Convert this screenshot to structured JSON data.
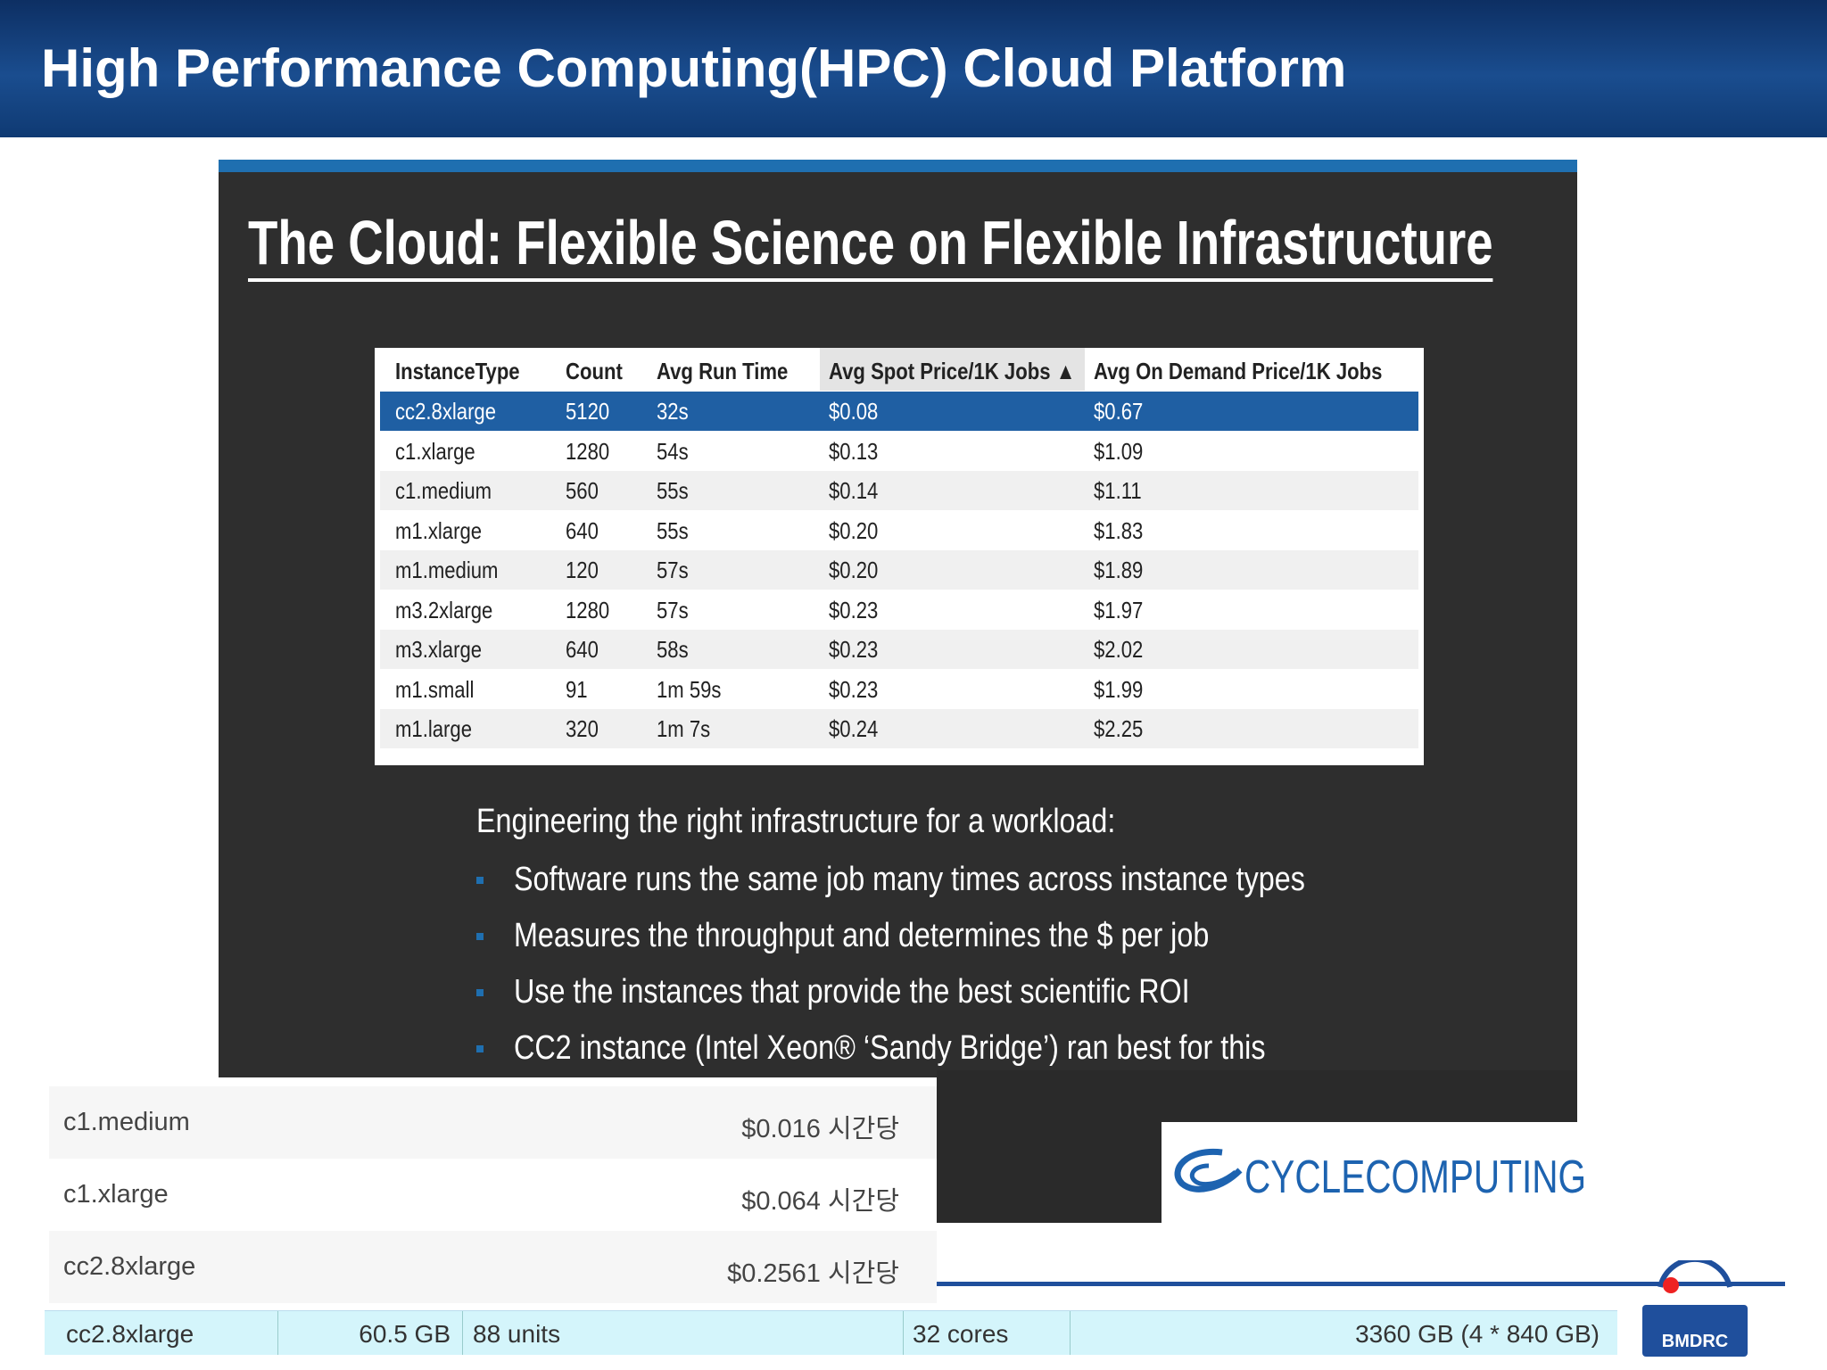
{
  "header": {
    "title": "High Performance Computing(HPC) Cloud Platform"
  },
  "slide": {
    "title": "The Cloud: Flexible Science on Flexible Infrastructure",
    "table": {
      "columns": [
        "InstanceType",
        "Count",
        "Avg Run Time",
        "Avg Spot Price/1K Jobs ▲",
        "Avg On Demand Price/1K Jobs"
      ],
      "rows": [
        [
          "cc2.8xlarge",
          "5120",
          "32s",
          "$0.08",
          "$0.67"
        ],
        [
          "c1.xlarge",
          "1280",
          "54s",
          "$0.13",
          "$1.09"
        ],
        [
          "c1.medium",
          "560",
          "55s",
          "$0.14",
          "$1.11"
        ],
        [
          "m1.xlarge",
          "640",
          "55s",
          "$0.20",
          "$1.83"
        ],
        [
          "m1.medium",
          "120",
          "57s",
          "$0.20",
          "$1.89"
        ],
        [
          "m3.2xlarge",
          "1280",
          "57s",
          "$0.23",
          "$1.97"
        ],
        [
          "m3.xlarge",
          "640",
          "58s",
          "$0.23",
          "$2.02"
        ],
        [
          "m1.small",
          "91",
          "1m 59s",
          "$0.23",
          "$1.99"
        ],
        [
          "m1.large",
          "320",
          "1m 7s",
          "$0.24",
          "$2.25"
        ]
      ]
    },
    "intro": "Engineering the right infrastructure for a workload:",
    "bullets": [
      "Software runs the same job many times across instance types",
      "Measures the throughput and determines the $ per job",
      "Use the instances that provide the best scientific ROI",
      "CC2 instance (Intel Xeon® ‘Sandy Bridge’) ran best for this"
    ],
    "logo": "CYCLECOMPUTING"
  },
  "prices": [
    [
      "c1.medium",
      "$0.016 시간당"
    ],
    [
      "c1.xlarge",
      "$0.064 시간당"
    ],
    [
      "cc2.8xlarge",
      "$0.2561 시간당"
    ]
  ],
  "spec": [
    "cc2.8xlarge",
    "60.5 GB",
    "88 units",
    "32 cores",
    "3360 GB (4 * 840 GB)"
  ],
  "footer_logo": "BMDRC"
}
